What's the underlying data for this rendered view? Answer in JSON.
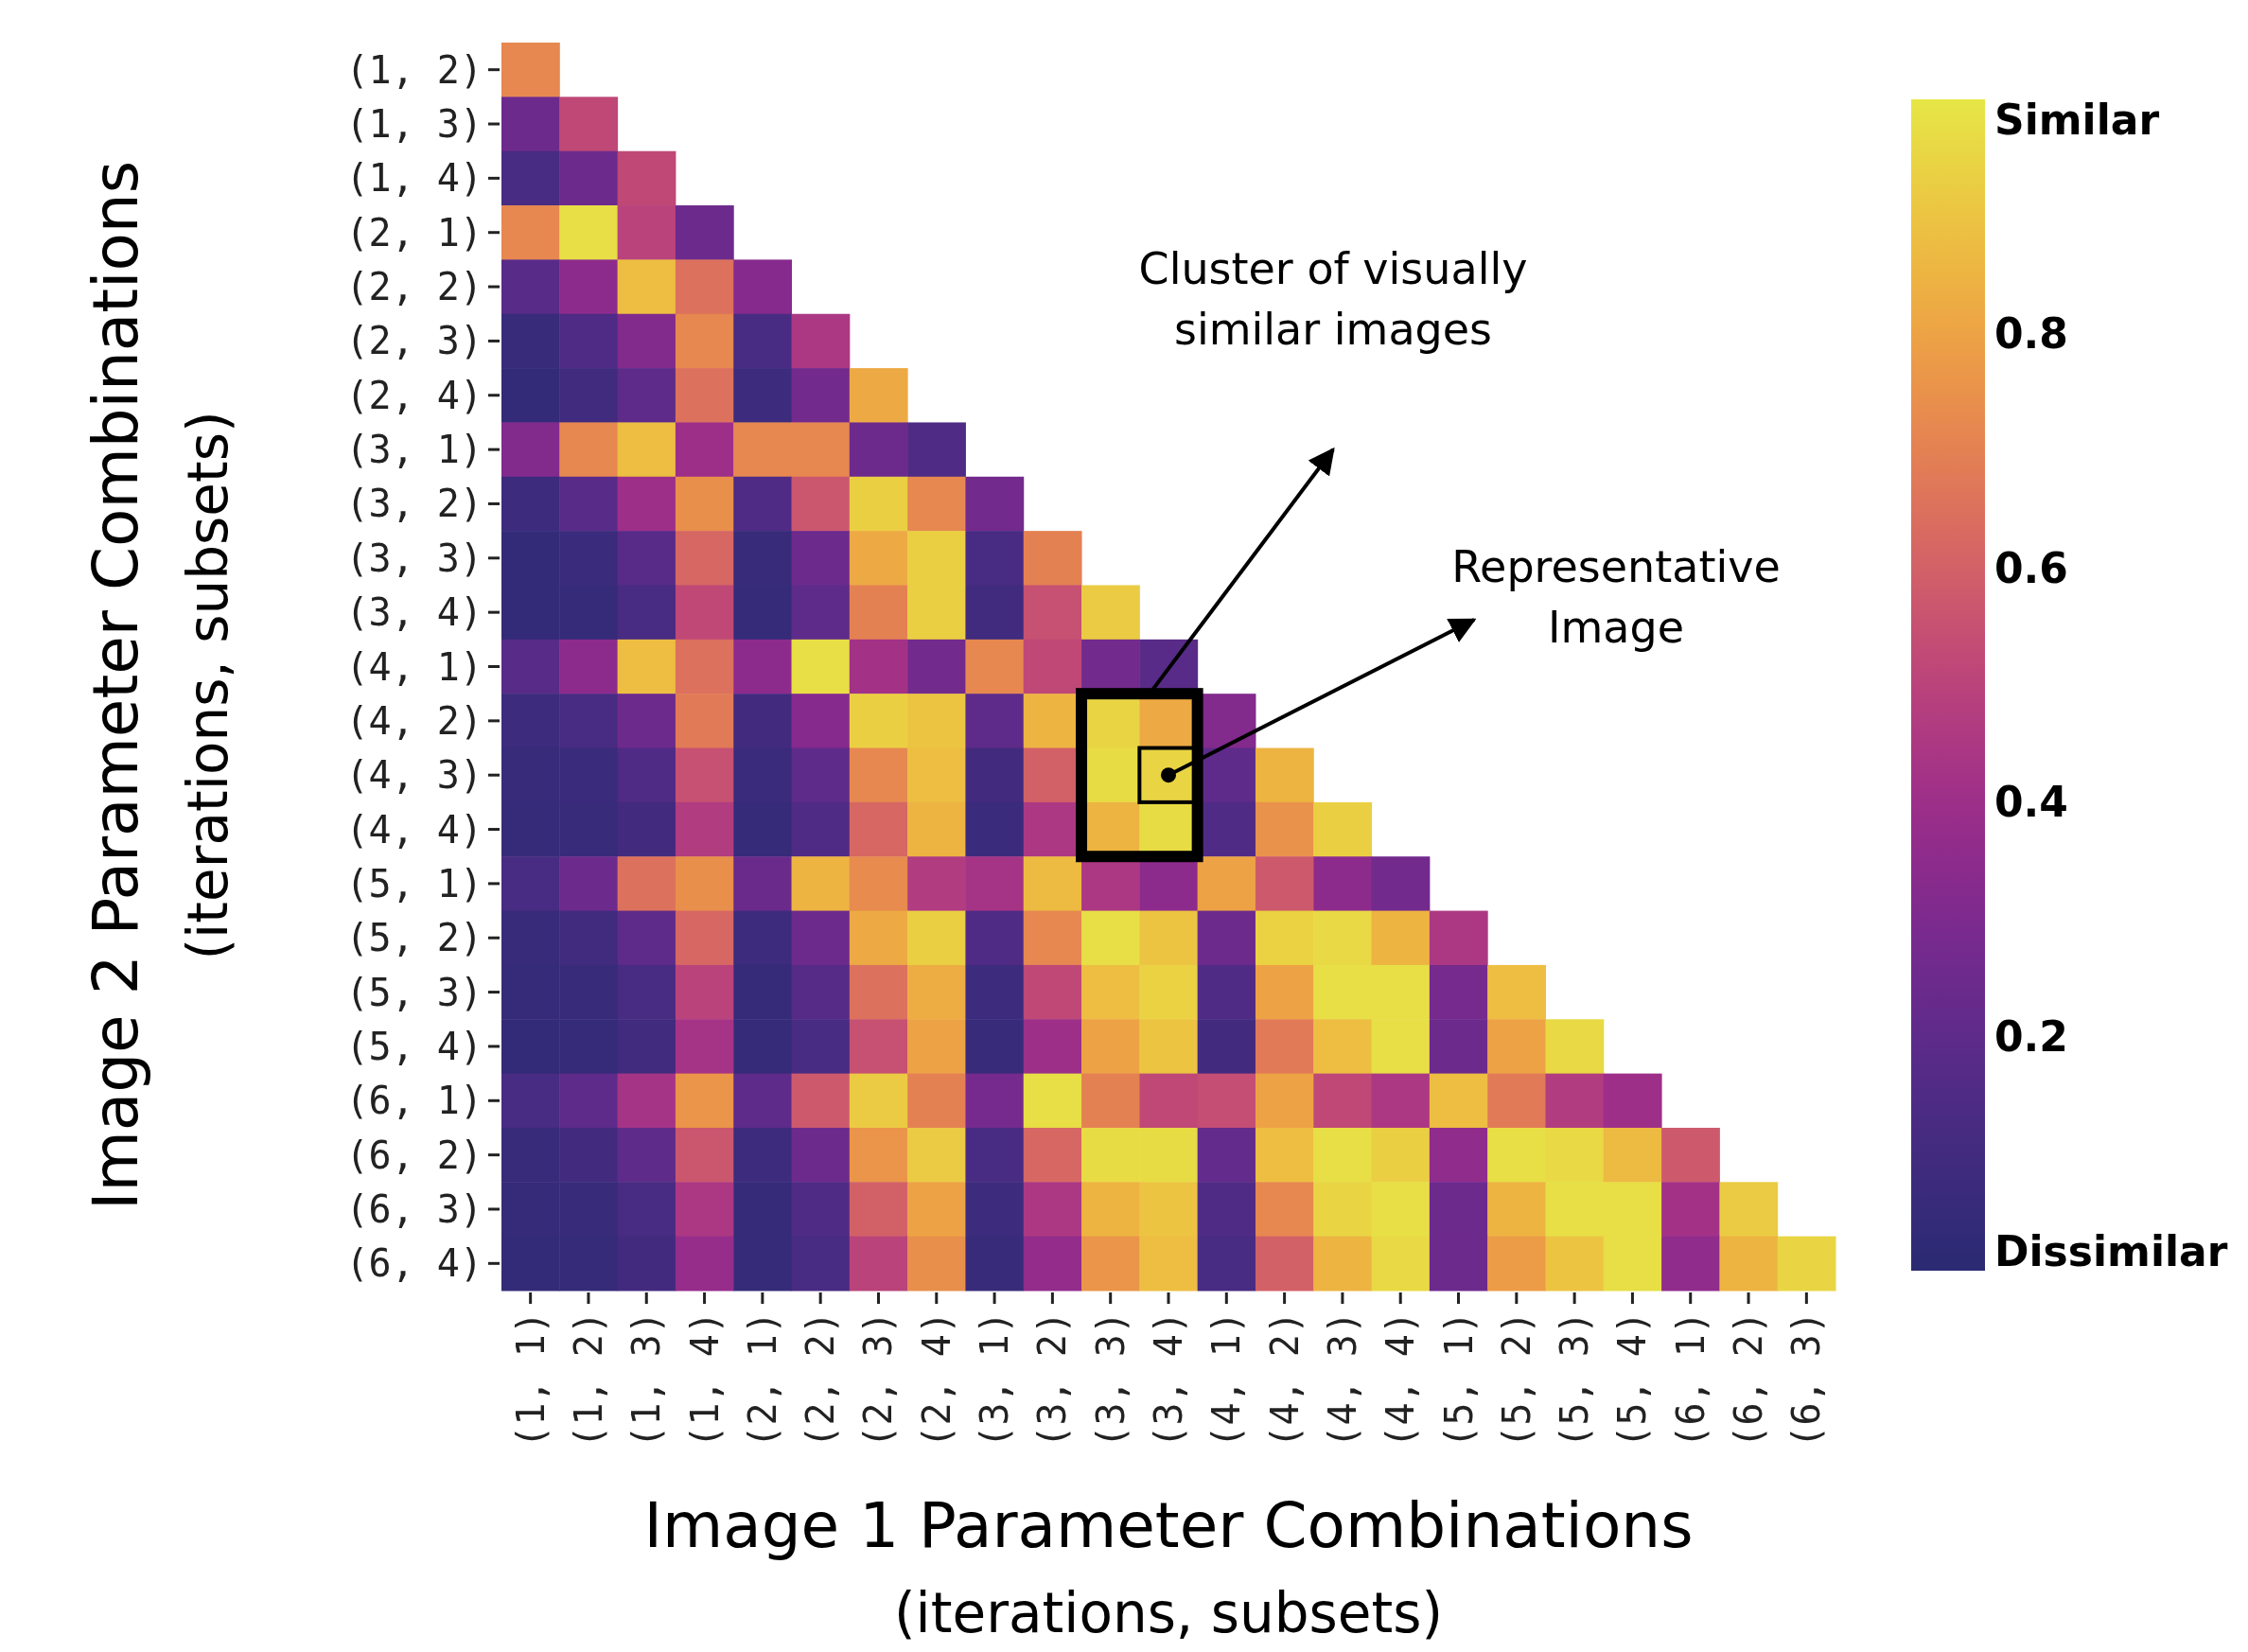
{
  "chart_data": {
    "type": "heatmap",
    "xlabel": "Image 1 Parameter Combinations\n(iterations, subsets)",
    "ylabel": "Image 2 Parameter Combinations\n(iterations, subsets)",
    "categories": [
      "(1, 1)",
      "(1, 2)",
      "(1, 3)",
      "(1, 4)",
      "(2, 1)",
      "(2, 2)",
      "(2, 3)",
      "(2, 4)",
      "(3, 1)",
      "(3, 2)",
      "(3, 3)",
      "(3, 4)",
      "(4, 1)",
      "(4, 2)",
      "(4, 3)",
      "(4, 4)",
      "(5, 1)",
      "(5, 2)",
      "(5, 3)",
      "(5, 4)",
      "(6, 1)",
      "(6, 2)",
      "(6, 3)"
    ],
    "y_categories": [
      "(1, 2)",
      "(1, 3)",
      "(1, 4)",
      "(2, 1)",
      "(2, 2)",
      "(2, 3)",
      "(2, 4)",
      "(3, 1)",
      "(3, 2)",
      "(3, 3)",
      "(3, 4)",
      "(4, 1)",
      "(4, 2)",
      "(4, 3)",
      "(4, 4)",
      "(5, 1)",
      "(5, 2)",
      "(5, 3)",
      "(5, 4)",
      "(6, 1)",
      "(6, 2)",
      "(6, 3)",
      "(6, 4)"
    ],
    "cells": [
      [
        0.72,
        null,
        null,
        null,
        null,
        null,
        null,
        null,
        null,
        null,
        null,
        null,
        null,
        null,
        null,
        null,
        null,
        null,
        null,
        null,
        null,
        null,
        null
      ],
      [
        0.25,
        0.52,
        null,
        null,
        null,
        null,
        null,
        null,
        null,
        null,
        null,
        null,
        null,
        null,
        null,
        null,
        null,
        null,
        null,
        null,
        null,
        null,
        null
      ],
      [
        0.12,
        0.25,
        0.52,
        null,
        null,
        null,
        null,
        null,
        null,
        null,
        null,
        null,
        null,
        null,
        null,
        null,
        null,
        null,
        null,
        null,
        null,
        null,
        null
      ],
      [
        0.72,
        0.98,
        0.5,
        0.25,
        null,
        null,
        null,
        null,
        null,
        null,
        null,
        null,
        null,
        null,
        null,
        null,
        null,
        null,
        null,
        null,
        null,
        null,
        null
      ],
      [
        0.18,
        0.35,
        0.88,
        0.65,
        0.33,
        null,
        null,
        null,
        null,
        null,
        null,
        null,
        null,
        null,
        null,
        null,
        null,
        null,
        null,
        null,
        null,
        null,
        null
      ],
      [
        0.06,
        0.15,
        0.32,
        0.72,
        0.12,
        0.45,
        null,
        null,
        null,
        null,
        null,
        null,
        null,
        null,
        null,
        null,
        null,
        null,
        null,
        null,
        null,
        null,
        null
      ],
      [
        0.04,
        0.09,
        0.2,
        0.65,
        0.08,
        0.27,
        0.82,
        null,
        null,
        null,
        null,
        null,
        null,
        null,
        null,
        null,
        null,
        null,
        null,
        null,
        null,
        null,
        null
      ],
      [
        0.32,
        0.72,
        0.88,
        0.4,
        0.72,
        0.72,
        0.25,
        0.15,
        null,
        null,
        null,
        null,
        null,
        null,
        null,
        null,
        null,
        null,
        null,
        null,
        null,
        null,
        null
      ],
      [
        0.08,
        0.18,
        0.4,
        0.74,
        0.15,
        0.57,
        0.93,
        0.72,
        0.27,
        null,
        null,
        null,
        null,
        null,
        null,
        null,
        null,
        null,
        null,
        null,
        null,
        null,
        null
      ],
      [
        0.04,
        0.07,
        0.18,
        0.62,
        0.06,
        0.25,
        0.82,
        0.93,
        0.12,
        0.7,
        null,
        null,
        null,
        null,
        null,
        null,
        null,
        null,
        null,
        null,
        null,
        null,
        null
      ],
      [
        0.04,
        0.05,
        0.12,
        0.52,
        0.05,
        0.2,
        0.7,
        0.93,
        0.09,
        0.55,
        0.92,
        null,
        null,
        null,
        null,
        null,
        null,
        null,
        null,
        null,
        null,
        null,
        null
      ],
      [
        0.18,
        0.35,
        0.88,
        0.65,
        0.35,
        0.98,
        0.42,
        0.27,
        0.72,
        0.52,
        0.27,
        0.18,
        null,
        null,
        null,
        null,
        null,
        null,
        null,
        null,
        null,
        null,
        null
      ],
      [
        0.08,
        0.12,
        0.25,
        0.68,
        0.1,
        0.33,
        0.93,
        0.9,
        0.2,
        0.85,
        0.95,
        0.82,
        0.32,
        null,
        null,
        null,
        null,
        null,
        null,
        null,
        null,
        null,
        null
      ],
      [
        0.06,
        0.07,
        0.15,
        0.55,
        0.07,
        0.2,
        0.72,
        0.88,
        0.1,
        0.6,
        0.97,
        0.95,
        0.2,
        0.85,
        null,
        null,
        null,
        null,
        null,
        null,
        null,
        null,
        null
      ],
      [
        0.05,
        0.06,
        0.1,
        0.47,
        0.05,
        0.15,
        0.62,
        0.85,
        0.07,
        0.45,
        0.85,
        0.97,
        0.15,
        0.75,
        0.93,
        null,
        null,
        null,
        null,
        null,
        null,
        null,
        null
      ],
      [
        0.12,
        0.25,
        0.65,
        0.74,
        0.24,
        0.85,
        0.73,
        0.47,
        0.43,
        0.87,
        0.45,
        0.35,
        0.8,
        0.58,
        0.35,
        0.27,
        null,
        null,
        null,
        null,
        null,
        null,
        null
      ],
      [
        0.06,
        0.09,
        0.2,
        0.62,
        0.08,
        0.25,
        0.82,
        0.93,
        0.15,
        0.72,
        0.98,
        0.9,
        0.25,
        0.94,
        0.96,
        0.85,
        0.45,
        null,
        null,
        null,
        null,
        null,
        null
      ],
      [
        0.05,
        0.06,
        0.12,
        0.5,
        0.05,
        0.17,
        0.65,
        0.83,
        0.08,
        0.52,
        0.88,
        0.94,
        0.15,
        0.8,
        0.98,
        0.98,
        0.28,
        0.88,
        null,
        null,
        null,
        null,
        null
      ],
      [
        0.04,
        0.05,
        0.09,
        0.43,
        0.05,
        0.12,
        0.55,
        0.8,
        0.06,
        0.4,
        0.8,
        0.9,
        0.1,
        0.68,
        0.88,
        0.98,
        0.25,
        0.8,
        0.96,
        null,
        null,
        null,
        null
      ],
      [
        0.12,
        0.2,
        0.43,
        0.76,
        0.2,
        0.58,
        0.92,
        0.7,
        0.28,
        0.98,
        0.7,
        0.52,
        0.54,
        0.8,
        0.52,
        0.45,
        0.88,
        0.68,
        0.47,
        0.4,
        null,
        null,
        null
      ],
      [
        0.06,
        0.1,
        0.2,
        0.57,
        0.08,
        0.25,
        0.76,
        0.92,
        0.12,
        0.62,
        0.97,
        0.97,
        0.22,
        0.88,
        0.98,
        0.93,
        0.36,
        0.98,
        0.96,
        0.87,
        0.58,
        null,
        null
      ],
      [
        0.05,
        0.06,
        0.12,
        0.45,
        0.05,
        0.15,
        0.6,
        0.8,
        0.08,
        0.45,
        0.85,
        0.9,
        0.15,
        0.72,
        0.95,
        0.98,
        0.25,
        0.85,
        0.98,
        0.98,
        0.42,
        0.92,
        null
      ],
      [
        0.04,
        0.05,
        0.1,
        0.38,
        0.05,
        0.12,
        0.5,
        0.74,
        0.06,
        0.37,
        0.76,
        0.88,
        0.12,
        0.6,
        0.85,
        0.96,
        0.25,
        0.78,
        0.9,
        0.98,
        0.36,
        0.85,
        0.95
      ]
    ],
    "clim": [
      0,
      1
    ],
    "cticks": [
      {
        "value": 1,
        "label": "Similar"
      },
      0.8,
      0.6,
      0.4,
      0.2,
      {
        "value": 0,
        "label": "Dissimilar"
      }
    ],
    "annotations": [
      "Cluster of visually similar images",
      {
        "text": "Representative Image",
        "x": "(3, 4)",
        "y": "(4, 3)"
      }
    ]
  }
}
